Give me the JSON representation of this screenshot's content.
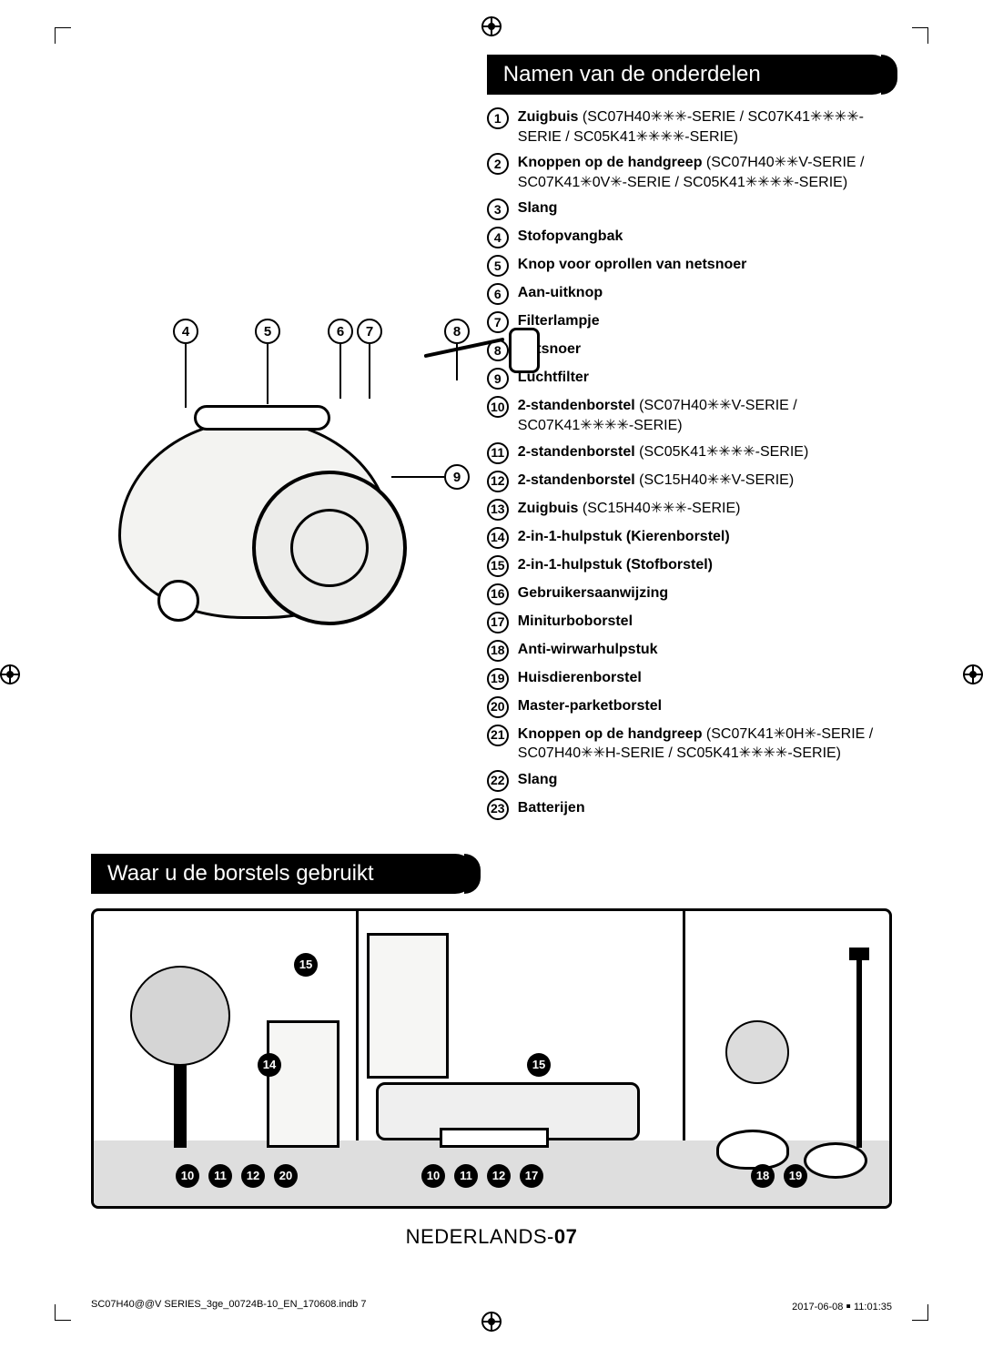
{
  "regmark_color": "#000000",
  "heading1": "Namen van de onderdelen",
  "heading2": "Waar u de borstels gebruikt",
  "parts": [
    {
      "n": "1",
      "bold": "Zuigbuis",
      "variant": " (SC07H40✳✳✳-SERIE / SC07K41✳✳✳✳-SERIE / SC05K41✳✳✳✳-SERIE)"
    },
    {
      "n": "2",
      "bold": "Knoppen op de handgreep",
      "variant": " (SC07H40✳✳V-SERIE / SC07K41✳0V✳-SERIE / SC05K41✳✳✳✳-SERIE)"
    },
    {
      "n": "3",
      "bold": "Slang",
      "variant": ""
    },
    {
      "n": "4",
      "bold": "Stofopvangbak",
      "variant": ""
    },
    {
      "n": "5",
      "bold": "Knop voor oprollen van netsnoer",
      "variant": ""
    },
    {
      "n": "6",
      "bold": "Aan-uitknop",
      "variant": ""
    },
    {
      "n": "7",
      "bold": "Filterlampje",
      "variant": ""
    },
    {
      "n": "8",
      "bold": "Netsnoer",
      "variant": ""
    },
    {
      "n": "9",
      "bold": "Luchtfilter",
      "variant": ""
    },
    {
      "n": "10",
      "bold": "2-standenborstel",
      "variant": " (SC07H40✳✳V-SERIE / SC07K41✳✳✳✳-SERIE)"
    },
    {
      "n": "11",
      "bold": "2-standenborstel",
      "variant": " (SC05K41✳✳✳✳-SERIE)"
    },
    {
      "n": "12",
      "bold": "2-standenborstel",
      "variant": " (SC15H40✳✳V-SERIE)"
    },
    {
      "n": "13",
      "bold": "Zuigbuis",
      "variant": " (SC15H40✳✳✳-SERIE)"
    },
    {
      "n": "14",
      "bold": "2-in-1-hulpstuk (Kierenborstel)",
      "variant": ""
    },
    {
      "n": "15",
      "bold": "2-in-1-hulpstuk (Stofborstel)",
      "variant": ""
    },
    {
      "n": "16",
      "bold": "Gebruikersaanwijzing",
      "variant": ""
    },
    {
      "n": "17",
      "bold": "Miniturboborstel",
      "variant": ""
    },
    {
      "n": "18",
      "bold": "Anti-wirwarhulpstuk",
      "variant": ""
    },
    {
      "n": "19",
      "bold": "Huisdierenborstel",
      "variant": ""
    },
    {
      "n": "20",
      "bold": "Master-parketborstel",
      "variant": ""
    },
    {
      "n": "21",
      "bold": "Knoppen op de handgreep",
      "variant": " (SC07K41✳0H✳-SERIE / SC07H40✳✳H-SERIE / SC05K41✳✳✳✳-SERIE)"
    },
    {
      "n": "22",
      "bold": "Slang",
      "variant": ""
    },
    {
      "n": "23",
      "bold": "Batterijen",
      "variant": ""
    }
  ],
  "diagram_callouts": {
    "c4": "4",
    "c5": "5",
    "c6": "6",
    "c7": "7",
    "c8": "8",
    "c9": "9"
  },
  "room_markers": {
    "m15a": "15",
    "m14": "14",
    "m15b": "15",
    "g1": [
      "10",
      "11",
      "12",
      "20"
    ],
    "g2": [
      "10",
      "11",
      "12",
      "17"
    ],
    "g3": [
      "18",
      "19"
    ]
  },
  "page_footer_lang": "NEDERLANDS-",
  "page_footer_num": "07",
  "meta_left": "SC07H40@@V SERIES_3ge_00724B-10_EN_170608.indb   7",
  "meta_right": "2017-06-08   ￭ 11:01:35"
}
